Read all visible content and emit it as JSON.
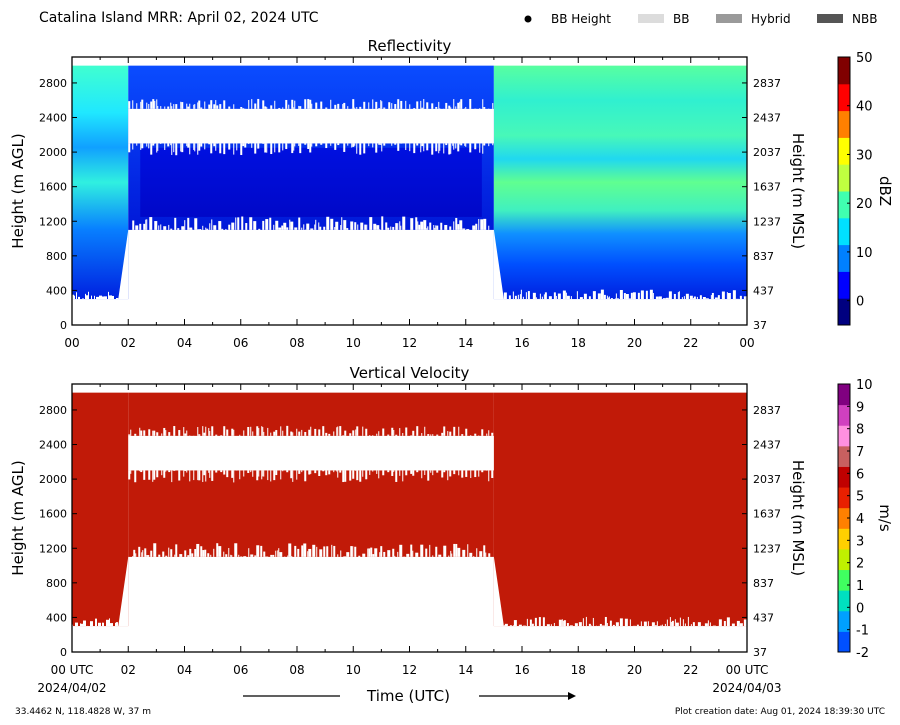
{
  "header": {
    "title": "Catalina Island MRR:  April 02, 2024 UTC",
    "legend": [
      {
        "label": "BB Height",
        "symbol": "dot",
        "color": "#000000"
      },
      {
        "label": "BB",
        "symbol": "swatch",
        "color": "#dcdcdc"
      },
      {
        "label": "Hybrid",
        "symbol": "swatch",
        "color": "#9a9a9a"
      },
      {
        "label": "NBB",
        "symbol": "swatch",
        "color": "#555555"
      }
    ]
  },
  "footer": {
    "coords": "33.4462 N, 118.4828 W, 37 m",
    "creation": "Plot creation date: Aug 01, 2024 18:39:30 UTC"
  },
  "chart_data": [
    {
      "type": "heatmap",
      "title": "Reflectivity",
      "xlabel": "",
      "ylabel": "Height (m AGL)",
      "ylabel_right": "Height (m MSL)",
      "colorbar_label": "dBZ",
      "x_ticks": [
        "00",
        "02",
        "04",
        "06",
        "08",
        "10",
        "12",
        "14",
        "16",
        "18",
        "20",
        "22",
        "00"
      ],
      "y_ticks": [
        0,
        400,
        800,
        1200,
        1600,
        2000,
        2400,
        2800
      ],
      "y_ticks_right": [
        "37",
        "437",
        "837",
        "1237",
        "1637",
        "2037",
        "2437",
        "2837"
      ],
      "xlim_hours": [
        0,
        24
      ],
      "ylim": [
        0,
        3100
      ],
      "colorbar_ticks": [
        0,
        10,
        20,
        30,
        40,
        50
      ],
      "colorbar_range": [
        -5,
        50
      ],
      "colors": [
        "#000080",
        "#0000ff",
        "#0080ff",
        "#00e0ff",
        "#40ffb0",
        "#c0ff40",
        "#ffff00",
        "#ff8000",
        "#ff0000",
        "#800000"
      ],
      "echo_top_m": 3000,
      "segments": [
        {
          "x0": 0.0,
          "x1": 2.0,
          "base_m": 300,
          "dbz": "2 to 14"
        },
        {
          "x0": 2.0,
          "x1": 15.0,
          "base_m": 1100,
          "gap_m": [
            2100,
            2500
          ],
          "dbz": "-1 to 6"
        },
        {
          "x0": 15.0,
          "x1": 24.0,
          "base_m": 300,
          "dbz": "4 to 20"
        }
      ]
    },
    {
      "type": "heatmap",
      "title": "Vertical Velocity",
      "xlabel": "Time (UTC)",
      "ylabel": "Height (m AGL)",
      "ylabel_right": "Height (m MSL)",
      "colorbar_label": "m/s",
      "x_ticks": [
        "00 UTC",
        "02",
        "04",
        "06",
        "08",
        "10",
        "12",
        "14",
        "16",
        "18",
        "20",
        "22",
        "00 UTC"
      ],
      "x_dates": [
        "2024/04/02",
        "2024/04/03"
      ],
      "y_ticks": [
        0,
        400,
        800,
        1200,
        1600,
        2000,
        2400,
        2800
      ],
      "y_ticks_right": [
        "37",
        "437",
        "837",
        "1237",
        "1637",
        "2037",
        "2437",
        "2837"
      ],
      "xlim_hours": [
        0,
        24
      ],
      "ylim": [
        0,
        3100
      ],
      "colorbar_ticks": [
        -2,
        -1,
        0,
        1,
        2,
        3,
        4,
        5,
        6,
        7,
        8,
        9,
        10
      ],
      "colorbar_range": [
        -2,
        10
      ],
      "colors": [
        "#0050ff",
        "#00a0ff",
        "#00e0c0",
        "#40ff60",
        "#c0f000",
        "#ffd000",
        "#ff8000",
        "#e82000",
        "#c00000",
        "#c86060",
        "#ff90e0",
        "#d040c0",
        "#800080"
      ],
      "fill_color": "#c11a08",
      "echo_top_m": 3000,
      "segments": [
        {
          "x0": 0.0,
          "x1": 2.0,
          "base_m": 300,
          "ms": "6"
        },
        {
          "x0": 2.0,
          "x1": 15.0,
          "base_m": 1100,
          "gap_m": [
            2100,
            2500
          ],
          "ms": "6"
        },
        {
          "x0": 15.0,
          "x1": 24.0,
          "base_m": 300,
          "ms": "6"
        }
      ]
    }
  ]
}
